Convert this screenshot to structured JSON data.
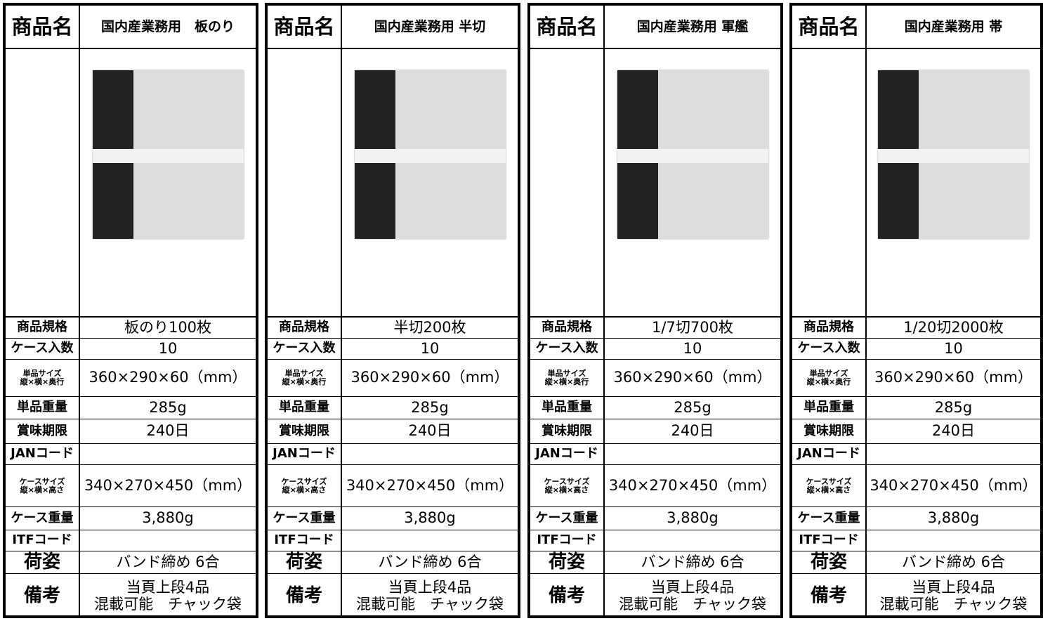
{
  "header_label": "商品名",
  "row_labels": [
    "商品規格",
    "ケース入数",
    "単品サイズ\n縦×横×奥行",
    "単品重量",
    "賞味期限",
    "JANコード",
    "ケースサイズ\n縦×横×高さ",
    "ケース重量",
    "ITFコード",
    "荷姿",
    "備考"
  ],
  "panels": [
    {
      "name": "国内産業務用　板のり",
      "cells": [
        "板のり100枚",
        "10",
        "360×290×60（mm）",
        "285g",
        "240日",
        null,
        "340×270×450（mm）",
        "3,880g",
        null,
        "バンド締め 6合",
        "当頁上段4品\n混載可能　チャック袋"
      ]
    },
    {
      "name": "国内産業務用 半切",
      "cells": [
        "半切200枚",
        "10",
        "360×290×60（mm）",
        "285g",
        "240日",
        null,
        "340×270×450（mm）",
        "3,880g",
        null,
        "バンド締め 6合",
        "当頁上段4品\n混載可能　チャック袋"
      ]
    },
    {
      "name": "国内産業務用 軍艦",
      "cells": [
        "1/7切700枚",
        "10",
        "360×290×60（mm）",
        "285g",
        "240日",
        null,
        "340×270×450（mm）",
        "3,880g",
        null,
        "バンド締め 6合",
        "当頁上段4品\n混載可能　チャック袋"
      ]
    },
    {
      "name": "国内産業務用 帯",
      "cells": [
        "1/20切2000枚",
        "10",
        "360×290×60（mm）",
        "285g",
        "240日",
        null,
        "340×270×450（mm）",
        "3,880g",
        null,
        "バンド締め 6合",
        "当頁上段4品\n混載可能　チャック袋"
      ]
    }
  ]
}
